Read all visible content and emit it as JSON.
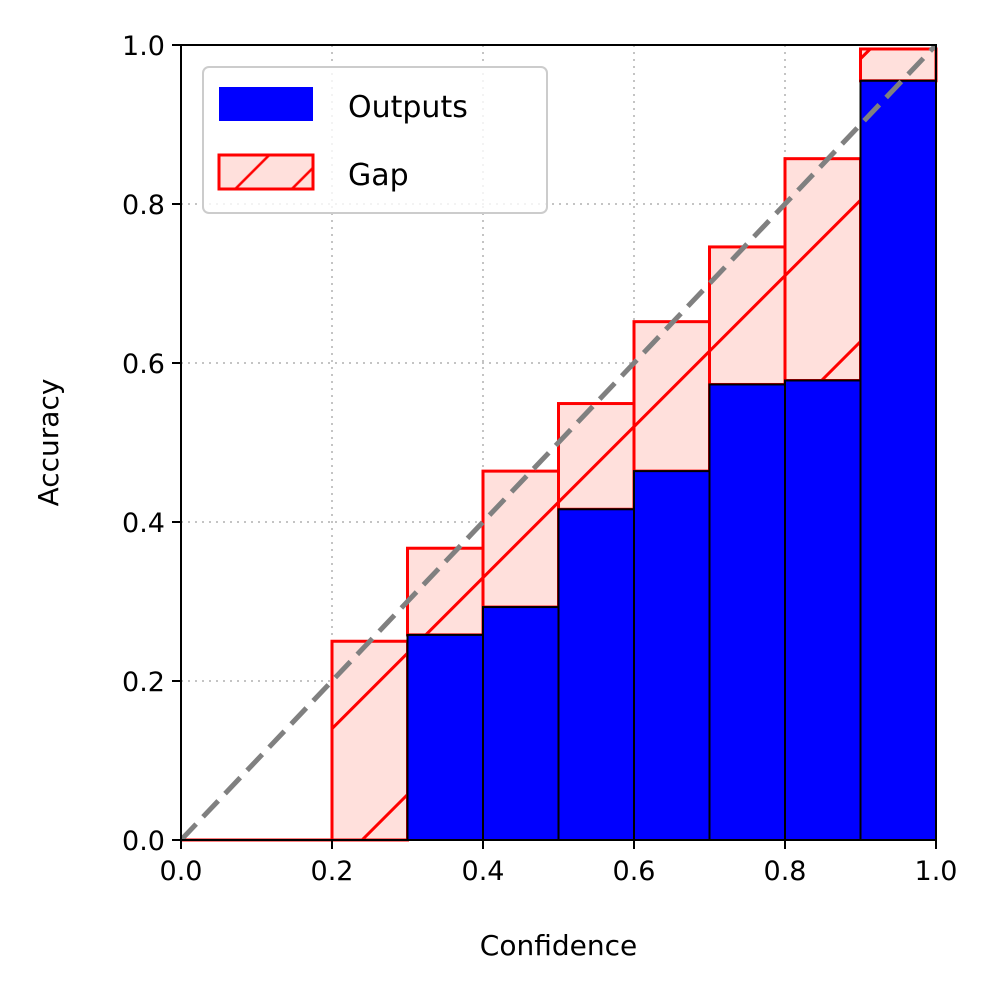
{
  "chart_data": {
    "type": "bar",
    "title": "",
    "xlabel": "Confidence",
    "ylabel": "Accuracy",
    "xlim": [
      0.0,
      1.0
    ],
    "ylim": [
      0.0,
      1.0
    ],
    "grid": true,
    "legend_position": "top-left",
    "bin_edges": [
      0.0,
      0.1,
      0.2,
      0.3,
      0.4,
      0.5,
      0.6,
      0.7,
      0.8,
      0.9,
      1.0
    ],
    "x_ticks": [
      "0.0",
      "0.2",
      "0.4",
      "0.6",
      "0.8",
      "1.0"
    ],
    "y_ticks": [
      "0.0",
      "0.2",
      "0.4",
      "0.6",
      "0.8",
      "1.0"
    ],
    "series": [
      {
        "name": "Outputs",
        "color": "#0000ff",
        "values": [
          0.0,
          0.0,
          0.0,
          0.258,
          0.293,
          0.416,
          0.464,
          0.573,
          0.578,
          0.955
        ]
      },
      {
        "name": "Gap",
        "color": "#ff0000",
        "fill": "#ffe0dc",
        "hatch": "/",
        "top": [
          0.0,
          0.0,
          0.25,
          0.367,
          0.464,
          0.549,
          0.652,
          0.746,
          0.857,
          0.995
        ]
      }
    ],
    "reference_line": {
      "from": [
        0.0,
        0.0
      ],
      "to": [
        1.0,
        1.0
      ],
      "color": "#808080",
      "style": "dashed"
    }
  }
}
